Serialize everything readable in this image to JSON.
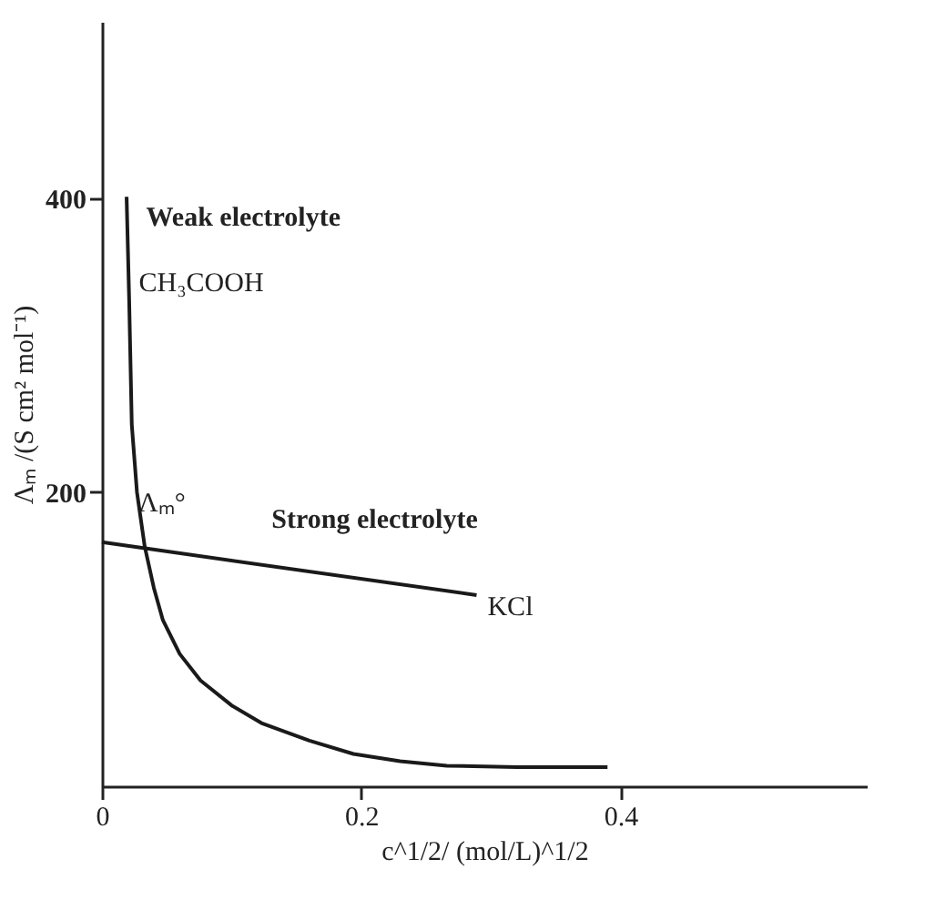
{
  "chart_data": {
    "type": "line",
    "xlabel": "c^1/2/ (mol/L)^1/2",
    "ylabel": "Λₘ /(S cm² mol⁻¹)",
    "xlim": [
      0,
      0.59
    ],
    "ylim": [
      0,
      520
    ],
    "xticks": [
      0,
      0.2,
      0.4
    ],
    "yticks": [
      200,
      400
    ],
    "grid": false,
    "marker": "none",
    "line_style": "solid",
    "series": [
      {
        "color": "#1a1a1a",
        "x": [
          0.019,
          0.021,
          0.023,
          0.027,
          0.033,
          0.04,
          0.047,
          0.06,
          0.076,
          0.1,
          0.123,
          0.16,
          0.194,
          0.23,
          0.266,
          0.32,
          0.39
        ],
        "values": [
          401,
          330,
          246,
          200,
          163,
          135,
          113,
          90,
          72,
          55,
          43,
          31,
          22,
          17,
          14,
          13,
          13
        ]
      },
      {
        "color": "#1a1a1a",
        "x": [
          0,
          0.289
        ],
        "values": [
          166,
          130
        ]
      }
    ],
    "annotations": [
      {
        "text": "Weak electrolyte",
        "x": 0.02,
        "y": 380
      },
      {
        "text": "CH₃COOH",
        "x": 0.02,
        "y": 358
      },
      {
        "text": "Λₘ°",
        "x": 0,
        "y": 166
      },
      {
        "text": "Strong electrolyte",
        "x": 0.1,
        "y": 152
      },
      {
        "text": "KCl",
        "x": 0.289,
        "y": 130
      }
    ]
  }
}
